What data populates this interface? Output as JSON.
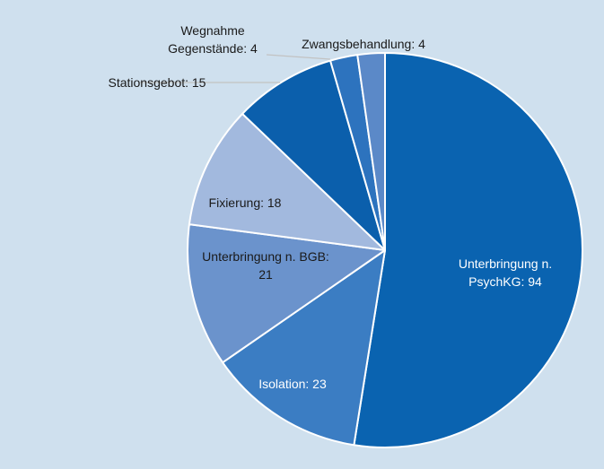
{
  "chart_data": {
    "type": "pie",
    "title": "",
    "legend": "none",
    "start_angle_deg": 0,
    "direction": "clockwise",
    "slices": [
      {
        "label": "Unterbringung n. PsychKG",
        "value": 94,
        "data_label": [
          "Unterbringung n.",
          "PsychKG: 94"
        ],
        "color": "#0a63b0",
        "label_color": "#ffffff"
      },
      {
        "label": "Isolation",
        "value": 23,
        "data_label": [
          "Isolation: 23"
        ],
        "color": "#3b7dc3",
        "label_color": "#ffffff"
      },
      {
        "label": "Unterbringung n. BGB",
        "value": 21,
        "data_label": [
          "Unterbringung n. BGB:",
          "21"
        ],
        "color": "#6b93cc",
        "label_color": "#1a1a1a"
      },
      {
        "label": "Fixierung",
        "value": 18,
        "data_label": [
          "Fixierung: 18"
        ],
        "color": "#a2b9de",
        "label_color": "#1a1a1a"
      },
      {
        "label": "Stationsgebot",
        "value": 15,
        "data_label": [
          "Stationsgebot: 15"
        ],
        "color": "#0b5fac",
        "label_color": "#1a1a1a"
      },
      {
        "label": "Wegnahme Gegenstände",
        "value": 4,
        "data_label": [
          "Wegnahme",
          "Gegenstände: 4"
        ],
        "color": "#2d73be",
        "label_color": "#1a1a1a"
      },
      {
        "label": "Zwangsbehandlung",
        "value": 4,
        "data_label": [
          "Zwangsbehandlung: 4"
        ],
        "color": "#5b89c8",
        "label_color": "#1a1a1a"
      }
    ]
  }
}
